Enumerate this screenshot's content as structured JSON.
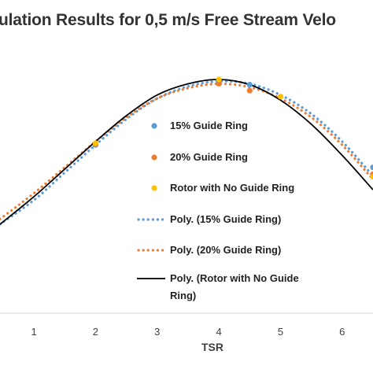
{
  "chart_data": {
    "type": "scatter",
    "title": "ulation  Results for 0,5 m/s Free Stream Velo",
    "xlabel": "TSR",
    "ylabel": "",
    "x_ticks": [
      "1",
      "2",
      "3",
      "4",
      "5",
      "6"
    ],
    "xlim": [
      0.45,
      6.5
    ],
    "ylim": [
      0,
      1
    ],
    "grid": false,
    "legend_position": "inside-center",
    "legend": [
      "15% Guide Ring",
      "20% Guide Ring",
      "Rotor with No Guide Ring",
      "Poly. (15% Guide Ring)",
      "Poly. (20% Guide Ring)",
      "Poly. (Rotor with No Guide Ring)"
    ],
    "series": [
      {
        "name": "15% Guide Ring",
        "kind": "points",
        "color": "#5B9BD5",
        "x": [
          2.0,
          4.0,
          4.5,
          6.5
        ],
        "y": [
          0.62,
          0.985,
          0.97,
          0.49
        ]
      },
      {
        "name": "20% Guide Ring",
        "kind": "points",
        "color": "#ED7D31",
        "x": [
          2.0,
          4.0,
          4.5,
          6.5
        ],
        "y": [
          0.625,
          0.975,
          0.935,
          0.45
        ]
      },
      {
        "name": "Rotor with No Guide Ring",
        "kind": "points",
        "color": "#FFC000",
        "x": [
          2.0,
          4.0,
          5.0,
          6.5
        ],
        "y": [
          0.63,
          1.0,
          0.9,
          0.435
        ]
      },
      {
        "name": "Poly. (15% Guide Ring)",
        "kind": "dotted-line",
        "color": "#5B9BD5",
        "x": [
          0.45,
          1,
          1.5,
          2,
          2.5,
          3,
          3.5,
          4,
          4.5,
          5,
          5.5,
          6,
          6.5
        ],
        "y": [
          0.16,
          0.3,
          0.46,
          0.62,
          0.77,
          0.89,
          0.96,
          0.99,
          0.975,
          0.91,
          0.8,
          0.64,
          0.44
        ]
      },
      {
        "name": "Poly. (20% Guide Ring)",
        "kind": "dotted-line",
        "color": "#ED7D31",
        "x": [
          0.45,
          1,
          1.5,
          2,
          2.5,
          3,
          3.5,
          4,
          4.5,
          5,
          5.5,
          6,
          6.5
        ],
        "y": [
          0.19,
          0.34,
          0.49,
          0.64,
          0.78,
          0.89,
          0.95,
          0.975,
          0.955,
          0.89,
          0.78,
          0.62,
          0.42
        ]
      },
      {
        "name": "Poly. (Rotor with No Guide Ring)",
        "kind": "solid-line",
        "color": "#000000",
        "x": [
          0.45,
          1,
          1.5,
          2,
          2.5,
          3,
          3.5,
          4,
          4.5,
          5,
          5.5,
          6,
          6.5
        ],
        "y": [
          0.16,
          0.32,
          0.48,
          0.64,
          0.79,
          0.91,
          0.975,
          1.0,
          0.97,
          0.88,
          0.74,
          0.56,
          0.36
        ]
      }
    ]
  }
}
